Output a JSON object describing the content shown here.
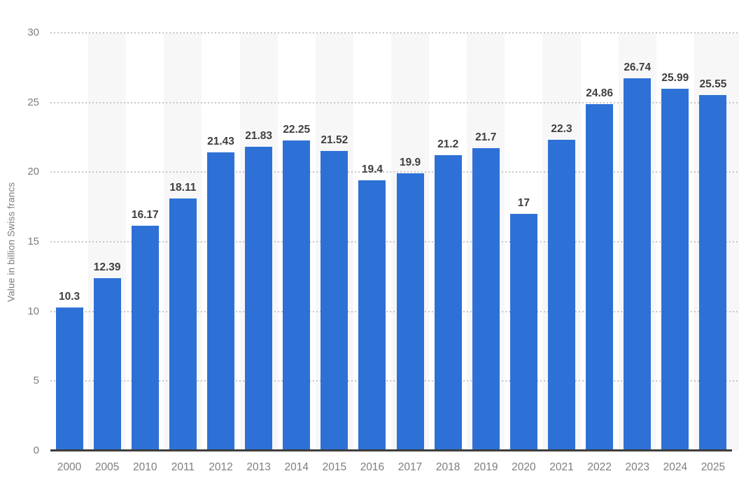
{
  "chart_data": {
    "type": "bar",
    "title": "",
    "xlabel": "",
    "ylabel": "Value in billion Swiss francs",
    "categories": [
      "2000",
      "2005",
      "2010",
      "2011",
      "2012",
      "2013",
      "2014",
      "2015",
      "2016",
      "2017",
      "2018",
      "2019",
      "2020",
      "2021",
      "2022",
      "2023",
      "2024",
      "2025"
    ],
    "values": [
      10.3,
      12.39,
      16.17,
      18.11,
      21.43,
      21.83,
      22.25,
      21.52,
      19.4,
      19.9,
      21.2,
      21.7,
      17,
      22.3,
      24.86,
      26.74,
      25.99,
      25.55
    ],
    "value_labels": [
      "10.3",
      "12.39",
      "16.17",
      "18.11",
      "21.43",
      "21.83",
      "22.25",
      "21.52",
      "19.4",
      "19.9",
      "21.2",
      "21.7",
      "17",
      "22.3",
      "24.86",
      "26.74",
      "25.99",
      "25.55"
    ],
    "ylim": [
      0,
      30
    ],
    "yticks": [
      0,
      5,
      10,
      15,
      20,
      25,
      30
    ],
    "grid": "horizontal-dotted",
    "legend": "none",
    "band_pattern": "alternating columns shaded starting at second category",
    "colors": {
      "bar": "#2e71d6",
      "column_band": "#f7f7f7",
      "gridline": "#c6c6c6",
      "axis_line": "#3d3d3d",
      "value_label": "#3f3f3f",
      "tick_label": "#7d7d7d",
      "background": "#ffffff"
    }
  }
}
